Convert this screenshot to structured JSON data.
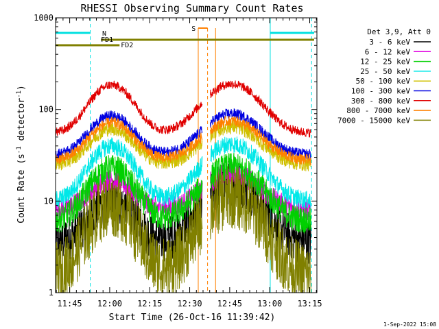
{
  "chart_data": {
    "type": "line",
    "title": "RHESSI Observing Summary Count Rates",
    "xlabel": "Start Time (26-Oct-16 11:39:42)",
    "ylabel_main": "Count Rate (s",
    "ylabel_sup1": "-1",
    "ylabel_mid": " detector",
    "ylabel_sup2": "-1",
    "ylabel_end": ")",
    "yscale": "log",
    "ylim": [
      1,
      1000
    ],
    "xlim_minutes": [
      0,
      98
    ],
    "x_ticks": [
      {
        "label": "11:45",
        "min": 5.3
      },
      {
        "label": "12:00",
        "min": 20.3
      },
      {
        "label": "12:15",
        "min": 35.3
      },
      {
        "label": "12:30",
        "min": 50.3
      },
      {
        "label": "12:45",
        "min": 65.3
      },
      {
        "label": "13:00",
        "min": 80.3
      },
      {
        "label": "13:15",
        "min": 95.3
      }
    ],
    "y_ticks": [
      {
        "label": "1",
        "value": 1
      },
      {
        "label": "10",
        "value": 10
      },
      {
        "label": "100",
        "value": 100
      },
      {
        "label": "1000",
        "value": 1000
      }
    ],
    "legend_header": "Det 3,9, Att 0",
    "gap_minutes": [
      55,
      58
    ],
    "series": [
      {
        "name": "3 - 6 keV",
        "color": "#000000",
        "base": 3.5,
        "peak": 10,
        "peak2": 16,
        "noise": 0.25
      },
      {
        "name": "6 - 12 keV",
        "color": "#e000e0",
        "base": 8,
        "peak": 17,
        "peak2": 20,
        "noise": 0.12
      },
      {
        "name": "12 - 25 keV",
        "color": "#00d000",
        "base": 6,
        "peak": 23,
        "peak2": 24,
        "noise": 0.15
      },
      {
        "name": "25 - 50 keV",
        "color": "#00e8e8",
        "base": 10,
        "peak": 40,
        "peak2": 42,
        "noise": 0.1
      },
      {
        "name": "50 - 100 keV",
        "color": "#d0c000",
        "base": 25,
        "peak": 62,
        "peak2": 65,
        "noise": 0.08
      },
      {
        "name": "100 - 300 keV",
        "color": "#0000e0",
        "base": 32,
        "peak": 85,
        "peak2": 90,
        "noise": 0.06
      },
      {
        "name": "300 - 800 keV",
        "color": "#e00000",
        "base": 55,
        "peak": 185,
        "peak2": 190,
        "noise": 0.05
      },
      {
        "name": "800 - 7000 keV",
        "color": "#ff8000",
        "base": 28,
        "peak": 72,
        "peak2": 75,
        "noise": 0.06
      },
      {
        "name": "7000 - 15000 keV",
        "color": "#808000",
        "base": 1.5,
        "peak": 9,
        "peak2": 11,
        "noise": 0.35
      }
    ],
    "annotations": {
      "night_lines_color": "#00e0e0",
      "saa_color": "#ff8000",
      "fd_color": "#808000",
      "labels": [
        {
          "text": "N",
          "color": "#00e0e0"
        },
        {
          "text": "S",
          "color": "#ff8000"
        },
        {
          "text": "FD1",
          "color": "#808000"
        },
        {
          "text": "FD2",
          "color": "#808000"
        }
      ]
    },
    "timestamp": "1-Sep-2022 15:08"
  }
}
